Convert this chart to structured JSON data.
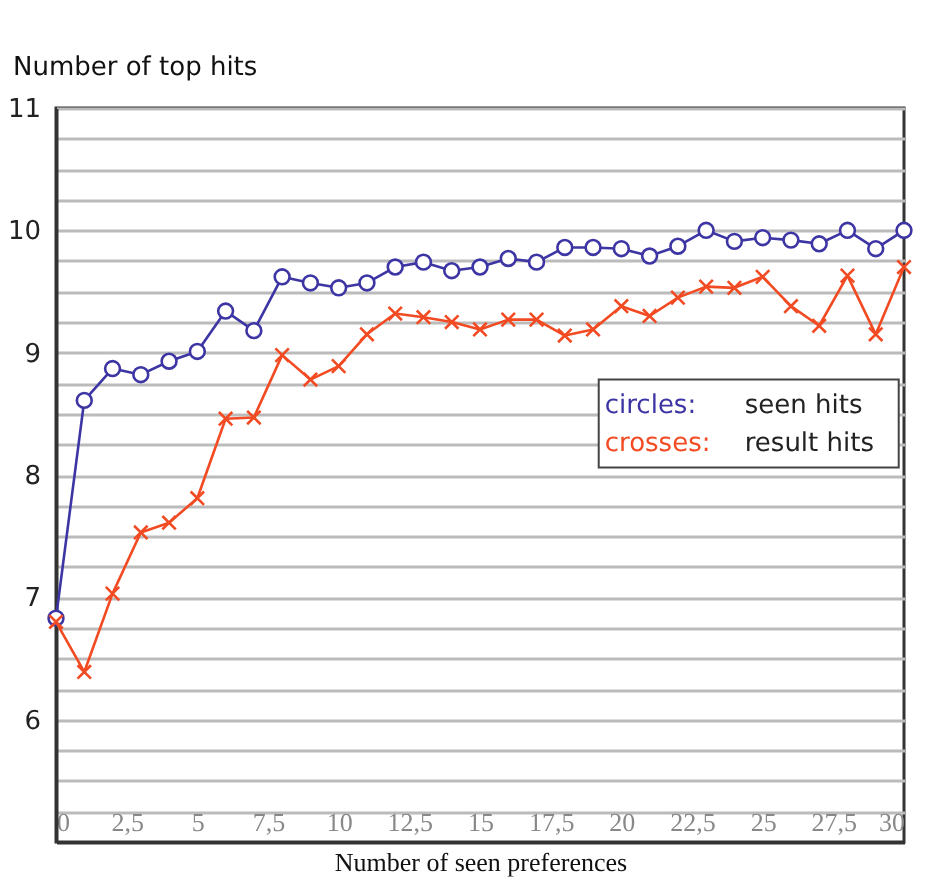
{
  "chart_data": {
    "type": "line",
    "xlabel": "Number of seen preferences",
    "ylabel": "Number of top hits",
    "x": [
      0,
      1,
      2,
      3,
      4,
      5,
      6,
      7,
      8,
      9,
      10,
      11,
      12,
      13,
      14,
      15,
      16,
      17,
      18,
      19,
      20,
      21,
      22,
      23,
      24,
      25,
      26,
      27,
      28,
      29,
      30
    ],
    "series": [
      {
        "name": "circles: seen hits",
        "color": "#3d35a3",
        "marker": "circle",
        "values": [
          6.83,
          8.61,
          8.87,
          8.82,
          8.93,
          9.01,
          9.34,
          9.18,
          9.62,
          9.57,
          9.53,
          9.57,
          9.7,
          9.74,
          9.67,
          9.7,
          9.77,
          9.74,
          9.86,
          9.86,
          9.85,
          9.79,
          9.87,
          10.0,
          9.91,
          9.94,
          9.92,
          9.89,
          10.0,
          9.85,
          10.0
        ]
      },
      {
        "name": "crosses: result hits",
        "color": "#f24a22",
        "marker": "cross",
        "values": [
          6.8,
          6.39,
          7.03,
          7.53,
          7.61,
          7.81,
          8.46,
          8.47,
          8.98,
          8.78,
          8.89,
          9.15,
          9.32,
          9.29,
          9.25,
          9.19,
          9.27,
          9.27,
          9.14,
          9.19,
          9.38,
          9.3,
          9.45,
          9.54,
          9.53,
          9.62,
          9.38,
          9.22,
          9.63,
          9.15,
          9.7
        ]
      }
    ],
    "xlim": [
      0,
      30
    ],
    "xticks": [
      0,
      {
        "value": 2.5,
        "label": "2,5"
      },
      5,
      {
        "value": 7.5,
        "label": "7,5"
      },
      10,
      {
        "value": 12.5,
        "label": "12,5"
      },
      15,
      {
        "value": 17.5,
        "label": "17,5"
      },
      20,
      {
        "value": 22.5,
        "label": "22,5"
      },
      25,
      {
        "value": 27.5,
        "label": "27,5"
      },
      30
    ],
    "ylim": [
      5,
      11
    ],
    "yticks": [
      {
        "value": 5.25,
        "label": null
      },
      {
        "value": 5.5,
        "label": null
      },
      {
        "value": 5.75,
        "label": null
      },
      6,
      {
        "value": 6.25,
        "label": null
      },
      {
        "value": 6.5,
        "label": null
      },
      {
        "value": 6.75,
        "label": null
      },
      7,
      {
        "value": 7.25,
        "label": null
      },
      {
        "value": 7.5,
        "label": null
      },
      {
        "value": 7.75,
        "label": null
      },
      8,
      {
        "value": 8.25,
        "label": null
      },
      {
        "value": 8.5,
        "label": null
      },
      {
        "value": 8.75,
        "label": null
      },
      9,
      {
        "value": 9.25,
        "label": null
      },
      {
        "value": 9.5,
        "label": null
      },
      {
        "value": 9.75,
        "label": null
      },
      10,
      {
        "value": 10.25,
        "label": null
      },
      {
        "value": 10.5,
        "label": null
      },
      {
        "value": 10.75,
        "label": null
      },
      11
    ],
    "grid": "y",
    "line_style": "solid"
  }
}
